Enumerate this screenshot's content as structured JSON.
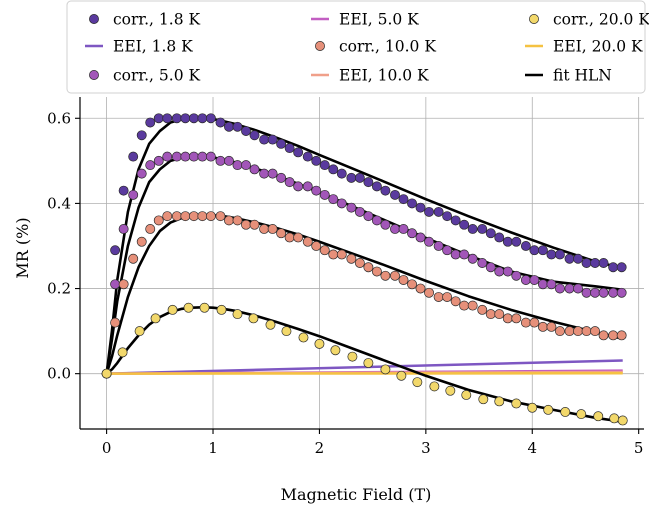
{
  "chart_data": {
    "type": "scatter",
    "xlabel": "Magnetic Field (T)",
    "ylabel": "MR (%)",
    "xlim": [
      -0.25,
      5.05
    ],
    "ylim": [
      -0.13,
      0.65
    ],
    "xticks": [
      0,
      1,
      2,
      3,
      4,
      5
    ],
    "yticks": [
      0.0,
      0.2,
      0.4,
      0.6
    ],
    "xtick_labels": [
      "0",
      "1",
      "2",
      "3",
      "4",
      "5"
    ],
    "ytick_labels": [
      "0.0",
      "0.2",
      "0.4",
      "0.6"
    ],
    "grid": true,
    "legend": {
      "placement": "top",
      "columns": 3
    },
    "marker_x": [
      0.0,
      0.08,
      0.16,
      0.25,
      0.33,
      0.41,
      0.49,
      0.57,
      0.66,
      0.74,
      0.82,
      0.9,
      0.98,
      1.07,
      1.15,
      1.23,
      1.31,
      1.39,
      1.48,
      1.56,
      1.64,
      1.72,
      1.8,
      1.89,
      1.97,
      2.05,
      2.13,
      2.21,
      2.3,
      2.38,
      2.46,
      2.54,
      2.62,
      2.71,
      2.79,
      2.87,
      2.95,
      3.03,
      3.12,
      3.2,
      3.28,
      3.36,
      3.44,
      3.53,
      3.61,
      3.69,
      3.77,
      3.85,
      3.94,
      4.02,
      4.1,
      4.18,
      4.26,
      4.35,
      4.43,
      4.51,
      4.59,
      4.67,
      4.76,
      4.84
    ],
    "sparse_x": [
      0.0,
      0.15,
      0.31,
      0.46,
      0.62,
      0.77,
      0.92,
      1.08,
      1.23,
      1.38,
      1.54,
      1.69,
      1.85,
      2.0,
      2.15,
      2.31,
      2.46,
      2.62,
      2.77,
      2.92,
      3.08,
      3.23,
      3.38,
      3.54,
      3.69,
      3.85,
      4.0,
      4.15,
      4.31,
      4.46,
      4.62,
      4.77,
      4.85
    ],
    "series": [
      {
        "name": "corr., 1.8 K",
        "kind": "points",
        "color": "#5a3a9e",
        "x_ref": "marker_x",
        "values": [
          0.0,
          0.29,
          0.43,
          0.51,
          0.56,
          0.59,
          0.6,
          0.6,
          0.6,
          0.6,
          0.6,
          0.6,
          0.6,
          0.59,
          0.58,
          0.58,
          0.57,
          0.56,
          0.55,
          0.55,
          0.54,
          0.53,
          0.52,
          0.51,
          0.5,
          0.49,
          0.48,
          0.47,
          0.46,
          0.46,
          0.45,
          0.44,
          0.43,
          0.42,
          0.41,
          0.4,
          0.39,
          0.38,
          0.38,
          0.37,
          0.36,
          0.35,
          0.34,
          0.34,
          0.33,
          0.32,
          0.31,
          0.31,
          0.3,
          0.29,
          0.29,
          0.28,
          0.28,
          0.27,
          0.27,
          0.26,
          0.26,
          0.26,
          0.25,
          0.25
        ]
      },
      {
        "name": "EEI, 1.8 K",
        "kind": "line",
        "color": "#7e57c2",
        "x": [
          0,
          4.85
        ],
        "values": [
          0.0,
          0.031
        ]
      },
      {
        "name": "corr., 5.0 K",
        "kind": "points",
        "color": "#a256b8",
        "x_ref": "marker_x",
        "values": [
          0.0,
          0.21,
          0.34,
          0.42,
          0.47,
          0.49,
          0.5,
          0.51,
          0.51,
          0.51,
          0.51,
          0.51,
          0.51,
          0.5,
          0.5,
          0.49,
          0.49,
          0.48,
          0.47,
          0.47,
          0.46,
          0.45,
          0.44,
          0.44,
          0.43,
          0.42,
          0.41,
          0.4,
          0.39,
          0.38,
          0.37,
          0.36,
          0.35,
          0.34,
          0.34,
          0.33,
          0.32,
          0.31,
          0.3,
          0.29,
          0.28,
          0.28,
          0.27,
          0.26,
          0.25,
          0.24,
          0.24,
          0.23,
          0.22,
          0.22,
          0.21,
          0.21,
          0.2,
          0.2,
          0.2,
          0.19,
          0.19,
          0.19,
          0.19,
          0.19
        ]
      },
      {
        "name": "EEI, 5.0 K",
        "kind": "line",
        "color": "#c25ec2",
        "x": [
          0,
          4.85
        ],
        "values": [
          0.0,
          0.007
        ]
      },
      {
        "name": "corr., 10.0 K",
        "kind": "points",
        "color": "#e6907a",
        "x_ref": "marker_x",
        "values": [
          0.0,
          0.12,
          0.21,
          0.27,
          0.31,
          0.34,
          0.36,
          0.37,
          0.37,
          0.37,
          0.37,
          0.37,
          0.37,
          0.37,
          0.36,
          0.36,
          0.35,
          0.35,
          0.34,
          0.34,
          0.33,
          0.32,
          0.32,
          0.31,
          0.3,
          0.29,
          0.28,
          0.28,
          0.27,
          0.26,
          0.25,
          0.24,
          0.23,
          0.23,
          0.22,
          0.21,
          0.2,
          0.19,
          0.18,
          0.18,
          0.17,
          0.16,
          0.16,
          0.15,
          0.14,
          0.14,
          0.13,
          0.13,
          0.12,
          0.12,
          0.11,
          0.11,
          0.1,
          0.1,
          0.1,
          0.1,
          0.1,
          0.09,
          0.09,
          0.09
        ]
      },
      {
        "name": "EEI, 10.0 K",
        "kind": "line",
        "color": "#f0a08a",
        "x": [
          0,
          4.85
        ],
        "values": [
          0.0,
          0.004
        ]
      },
      {
        "name": "corr., 20.0 K",
        "kind": "points",
        "color": "#f2d86b",
        "x_ref": "sparse_x",
        "values": [
          0.0,
          0.05,
          0.1,
          0.13,
          0.15,
          0.155,
          0.155,
          0.15,
          0.14,
          0.13,
          0.115,
          0.1,
          0.085,
          0.07,
          0.055,
          0.04,
          0.025,
          0.01,
          -0.005,
          -0.02,
          -0.03,
          -0.04,
          -0.05,
          -0.06,
          -0.065,
          -0.07,
          -0.08,
          -0.085,
          -0.09,
          -0.095,
          -0.1,
          -0.105,
          -0.11
        ]
      },
      {
        "name": "EEI, 20.0 K",
        "kind": "line",
        "color": "#f5c242",
        "x": [
          0,
          4.85
        ],
        "values": [
          0.0,
          0.001
        ]
      },
      {
        "name": "fit HLN",
        "kind": "fit",
        "color": "#000000",
        "curves": [
          {
            "x": [
              0.0,
              0.05,
              0.1,
              0.2,
              0.3,
              0.4,
              0.5,
              0.6,
              0.7,
              0.8,
              0.9,
              1.0,
              1.1,
              1.2,
              1.4,
              1.6,
              1.8,
              2.0,
              2.3,
              2.6,
              3.0,
              3.4,
              3.8,
              4.2,
              4.6,
              4.85
            ],
            "y": [
              0.0,
              0.1,
              0.22,
              0.38,
              0.48,
              0.54,
              0.57,
              0.59,
              0.597,
              0.6,
              0.6,
              0.598,
              0.593,
              0.587,
              0.572,
              0.554,
              0.535,
              0.514,
              0.483,
              0.452,
              0.41,
              0.37,
              0.332,
              0.296,
              0.263,
              0.248
            ]
          },
          {
            "x": [
              0.0,
              0.05,
              0.1,
              0.2,
              0.3,
              0.4,
              0.5,
              0.6,
              0.7,
              0.8,
              0.9,
              1.0,
              1.1,
              1.2,
              1.4,
              1.6,
              1.8,
              2.0,
              2.3,
              2.6,
              3.0,
              3.4,
              3.8,
              4.2,
              4.6,
              4.85
            ],
            "y": [
              0.0,
              0.08,
              0.17,
              0.3,
              0.39,
              0.45,
              0.48,
              0.5,
              0.507,
              0.51,
              0.51,
              0.508,
              0.503,
              0.497,
              0.482,
              0.465,
              0.446,
              0.426,
              0.394,
              0.362,
              0.319,
              0.278,
              0.24,
              0.216,
              0.205,
              0.197
            ]
          },
          {
            "x": [
              0.0,
              0.05,
              0.1,
              0.2,
              0.3,
              0.4,
              0.5,
              0.6,
              0.7,
              0.8,
              0.9,
              1.0,
              1.1,
              1.2,
              1.4,
              1.6,
              1.8,
              2.0,
              2.3,
              2.6,
              3.0,
              3.4,
              3.8,
              4.2,
              4.6,
              4.85
            ],
            "y": [
              0.0,
              0.04,
              0.09,
              0.18,
              0.25,
              0.3,
              0.335,
              0.355,
              0.365,
              0.37,
              0.372,
              0.372,
              0.37,
              0.366,
              0.355,
              0.342,
              0.327,
              0.31,
              0.283,
              0.256,
              0.218,
              0.182,
              0.15,
              0.122,
              0.097,
              0.082
            ]
          },
          {
            "x": [
              0.0,
              0.05,
              0.1,
              0.2,
              0.3,
              0.4,
              0.5,
              0.6,
              0.7,
              0.8,
              0.9,
              1.0,
              1.1,
              1.2,
              1.4,
              1.6,
              1.8,
              2.0,
              2.3,
              2.6,
              3.0,
              3.4,
              3.8,
              4.2,
              4.6,
              4.85
            ],
            "y": [
              0.0,
              0.01,
              0.025,
              0.06,
              0.09,
              0.115,
              0.133,
              0.145,
              0.152,
              0.155,
              0.156,
              0.155,
              0.152,
              0.148,
              0.136,
              0.121,
              0.105,
              0.088,
              0.06,
              0.032,
              -0.005,
              -0.038,
              -0.065,
              -0.085,
              -0.104,
              -0.113
            ]
          }
        ]
      }
    ]
  }
}
